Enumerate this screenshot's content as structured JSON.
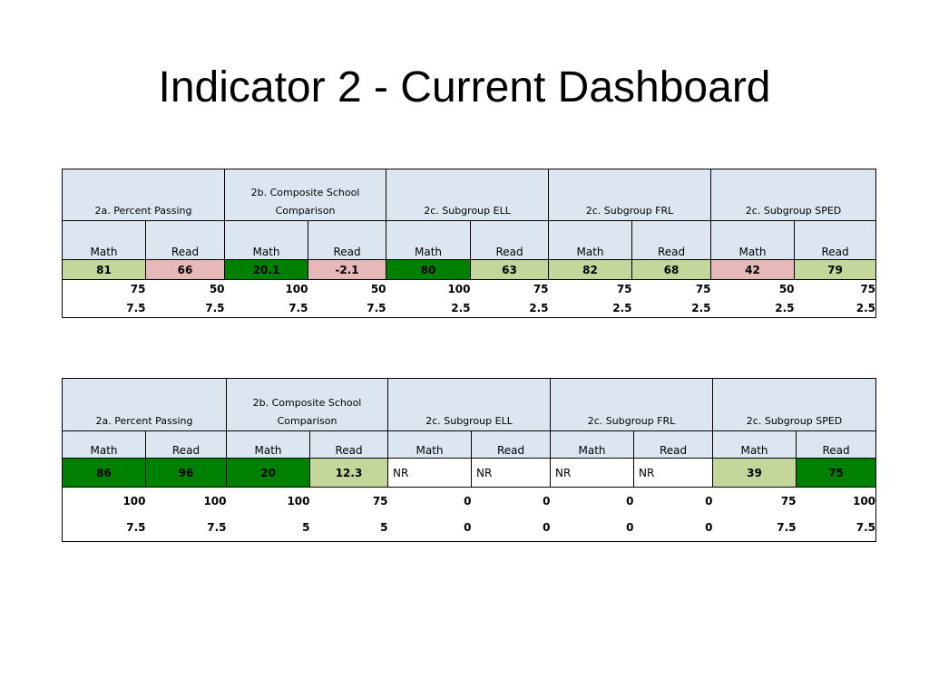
{
  "title": "Indicator 2 - Current Dashboard",
  "colors": {
    "header_bg": "#dce6f1",
    "light_green": "#c4d79b",
    "pink": "#e6b8b7",
    "dark_green": "#008000",
    "white": "#ffffff"
  },
  "tables": [
    {
      "headers": [
        "2a. Percent Passing",
        "2b. Composite School Comparison",
        "2c. Subgroup ELL",
        "2c. Subgroup FRL",
        "2c. Subgroup SPED"
      ],
      "subheaders": [
        "Math",
        "Read",
        "Math",
        "Read",
        "Math",
        "Read",
        "Math",
        "Read",
        "Math",
        "Read"
      ],
      "scores": [
        {
          "value": "81",
          "color": "light-green"
        },
        {
          "value": "66",
          "color": "pink"
        },
        {
          "value": "20.1",
          "color": "dark-green"
        },
        {
          "value": "-2.1",
          "color": "pink"
        },
        {
          "value": "80",
          "color": "dark-green"
        },
        {
          "value": "63",
          "color": "light-green"
        },
        {
          "value": "82",
          "color": "light-green"
        },
        {
          "value": "68",
          "color": "light-green"
        },
        {
          "value": "42",
          "color": "pink"
        },
        {
          "value": "79",
          "color": "light-green"
        }
      ],
      "row_a": [
        "75",
        "50",
        "100",
        "50",
        "100",
        "75",
        "75",
        "75",
        "50",
        "75"
      ],
      "row_b": [
        "7.5",
        "7.5",
        "7.5",
        "7.5",
        "2.5",
        "2.5",
        "2.5",
        "2.5",
        "2.5",
        "2.5"
      ]
    },
    {
      "headers": [
        "2a. Percent Passing",
        "2b. Composite School Comparison",
        "2c. Subgroup ELL",
        "2c. Subgroup FRL",
        "2c. Subgroup SPED"
      ],
      "subheaders": [
        "Math",
        "Read",
        "Math",
        "Read",
        "Math",
        "Read",
        "Math",
        "Read",
        "Math",
        "Read"
      ],
      "scores": [
        {
          "value": "86",
          "color": "dark-green"
        },
        {
          "value": "96",
          "color": "dark-green"
        },
        {
          "value": "20",
          "color": "dark-green"
        },
        {
          "value": "12.3",
          "color": "light-green"
        },
        {
          "value": "NR",
          "color": "white"
        },
        {
          "value": "NR",
          "color": "white"
        },
        {
          "value": "NR",
          "color": "white"
        },
        {
          "value": "NR",
          "color": "white"
        },
        {
          "value": "39",
          "color": "light-green"
        },
        {
          "value": "75",
          "color": "dark-green"
        }
      ],
      "row_a": [
        "100",
        "100",
        "100",
        "75",
        "0",
        "0",
        "0",
        "0",
        "75",
        "100"
      ],
      "row_b": [
        "7.5",
        "7.5",
        "5",
        "5",
        "0",
        "0",
        "0",
        "0",
        "7.5",
        "7.5"
      ]
    }
  ]
}
